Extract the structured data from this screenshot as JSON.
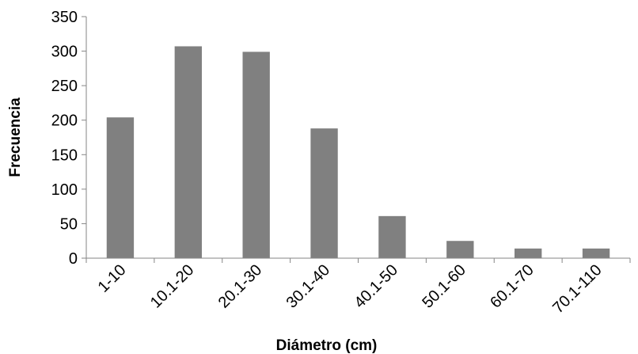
{
  "chart_data": {
    "type": "bar",
    "title": "",
    "xlabel": "Diámetro (cm)",
    "ylabel": "Frecuencia",
    "categories": [
      "1-10",
      "10.1-20",
      "20.1-30",
      "30.1-40",
      "40.1-50",
      "50.1-60",
      "60.1-70",
      "70.1-110"
    ],
    "values": [
      204,
      307,
      299,
      188,
      61,
      25,
      14,
      14
    ],
    "ylim": [
      0,
      350
    ],
    "yticks": [
      "0",
      "50",
      "100",
      "150",
      "200",
      "250",
      "300",
      "350"
    ],
    "grid": false,
    "legend": "none",
    "bar_color": "#808080",
    "axis_color": "#868686"
  }
}
